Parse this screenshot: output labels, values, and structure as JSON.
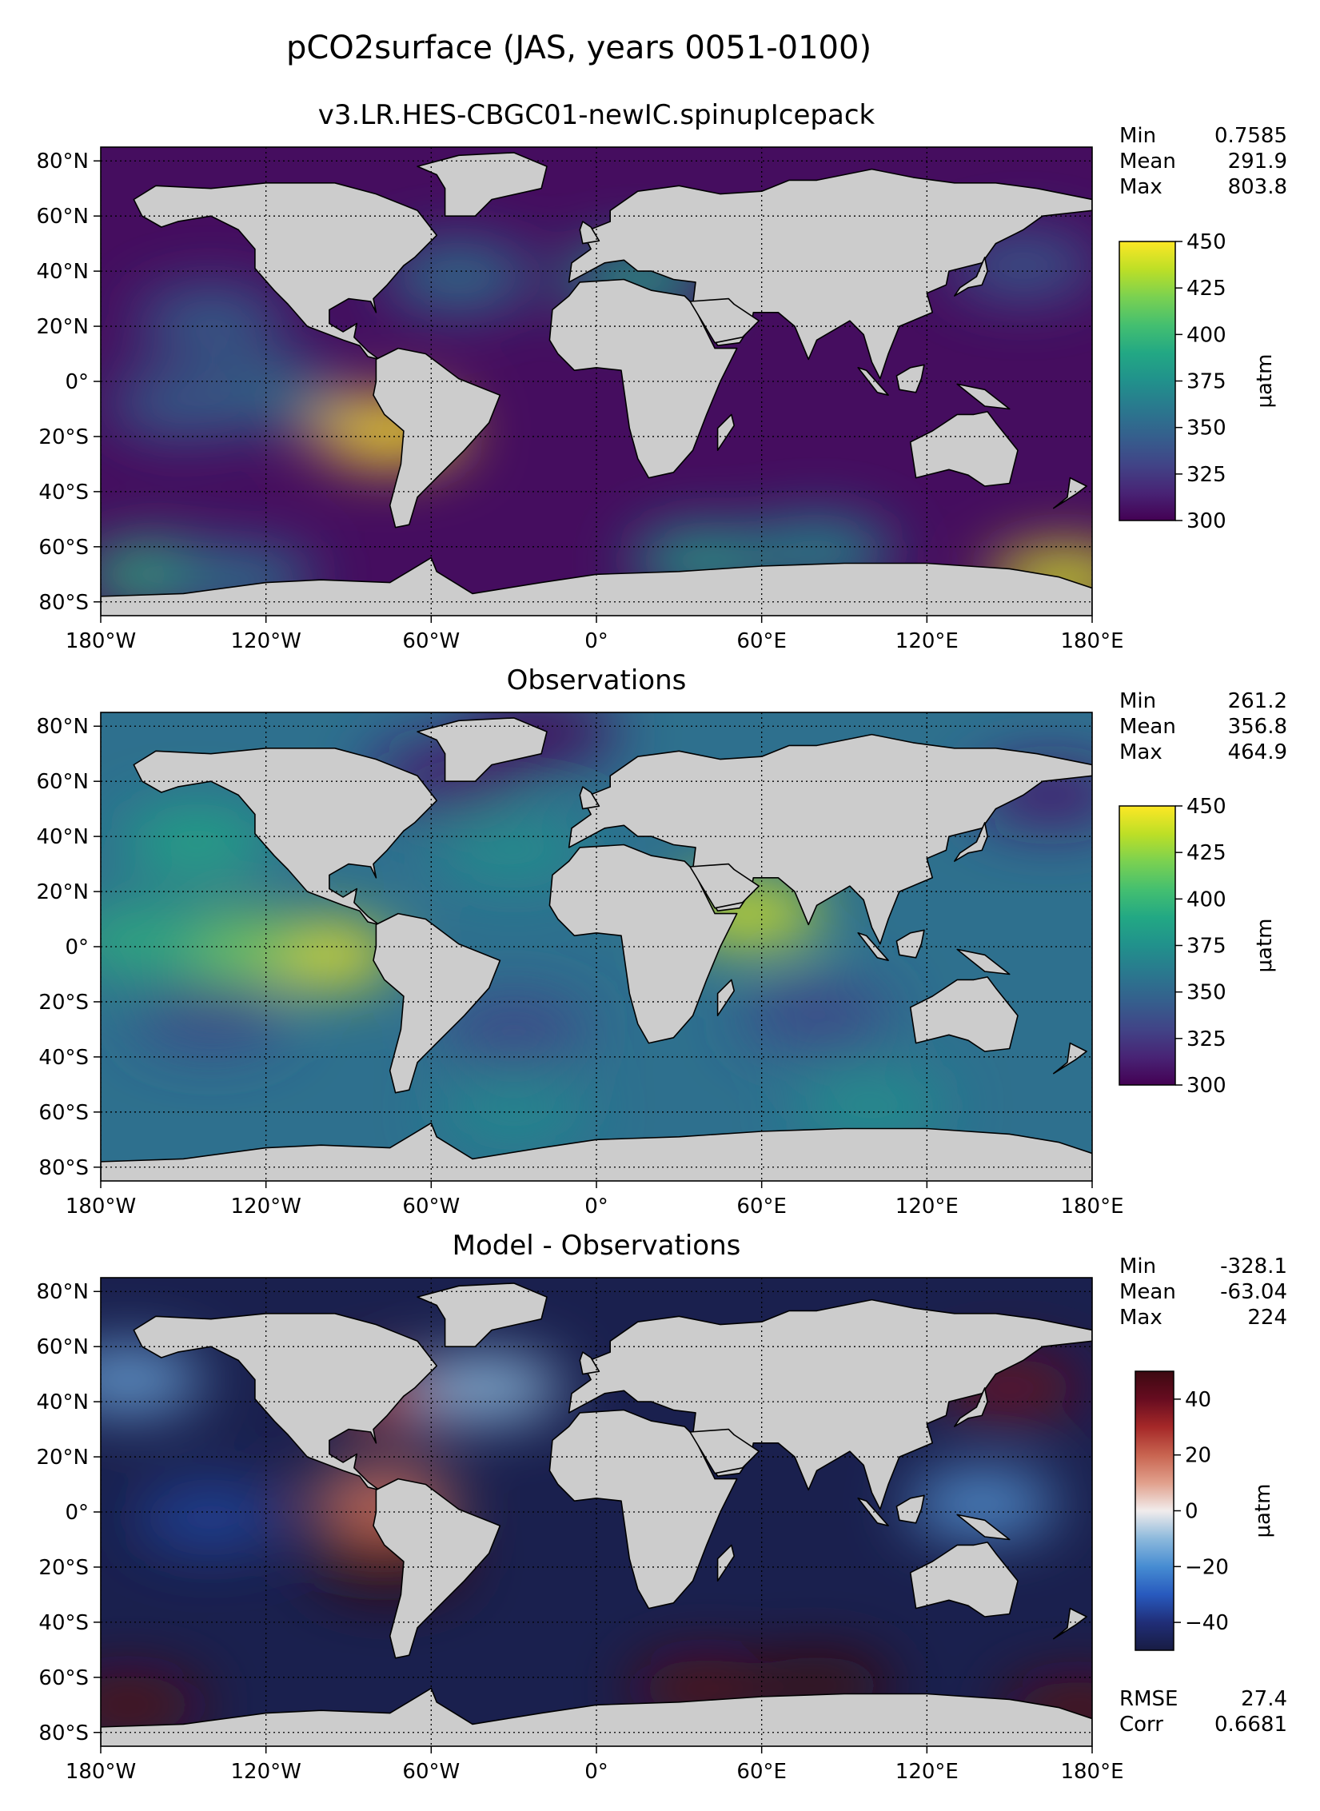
{
  "title": "pCO2surface (JAS, years 0051-0100)",
  "lon_ticks": [
    "180°W",
    "120°W",
    "60°W",
    "0°",
    "60°E",
    "120°E",
    "180°E"
  ],
  "lat_ticks": [
    "80°N",
    "60°N",
    "40°N",
    "20°N",
    "0°",
    "20°S",
    "40°S",
    "60°S",
    "80°S"
  ],
  "chart_data": [
    {
      "type": "heatmap",
      "title": "v3.LR.HES-CBGC01-newIC.spinupIcepack",
      "stats": [
        {
          "label": "Min",
          "value": "0.7585"
        },
        {
          "label": "Mean",
          "value": "291.9"
        },
        {
          "label": "Max",
          "value": "803.8"
        }
      ],
      "colorbar": {
        "label": "μatm",
        "colormap": "viridis",
        "min": 300,
        "max": 450,
        "ticks": [
          "300",
          "325",
          "350",
          "375",
          "400",
          "425",
          "450"
        ]
      },
      "xlim": [
        -180,
        180
      ],
      "ylim": [
        -85,
        85
      ],
      "ocean_base": 305,
      "features": [
        {
          "lon": -75,
          "lat": -18,
          "value": 450
        },
        {
          "lon": -120,
          "lat": -5,
          "value": 360
        },
        {
          "lon": -150,
          "lat": -8,
          "value": 350
        },
        {
          "lon": -140,
          "lat": 22,
          "value": 350
        },
        {
          "lon": -50,
          "lat": 38,
          "value": 360
        },
        {
          "lon": 15,
          "lat": 37,
          "value": 385
        },
        {
          "lon": -160,
          "lat": -70,
          "value": 395
        },
        {
          "lon": -130,
          "lat": -72,
          "value": 360
        },
        {
          "lon": 40,
          "lat": -65,
          "value": 385
        },
        {
          "lon": 80,
          "lat": -62,
          "value": 375
        },
        {
          "lon": 170,
          "lat": -72,
          "value": 440
        },
        {
          "lon": 155,
          "lat": 42,
          "value": 345
        }
      ]
    },
    {
      "type": "heatmap",
      "title": "Observations",
      "stats": [
        {
          "label": "Min",
          "value": "261.2"
        },
        {
          "label": "Mean",
          "value": "356.8"
        },
        {
          "label": "Max",
          "value": "464.9"
        }
      ],
      "colorbar": {
        "label": "μatm",
        "colormap": "viridis",
        "min": 300,
        "max": 450,
        "ticks": [
          "300",
          "325",
          "350",
          "375",
          "400",
          "425",
          "450"
        ]
      },
      "xlim": [
        -180,
        180
      ],
      "ylim": [
        -85,
        85
      ],
      "ocean_base": 355,
      "features": [
        {
          "lon": -100,
          "lat": -3,
          "value": 445
        },
        {
          "lon": -135,
          "lat": 0,
          "value": 420
        },
        {
          "lon": -165,
          "lat": 2,
          "value": 395
        },
        {
          "lon": 55,
          "lat": 12,
          "value": 440
        },
        {
          "lon": -145,
          "lat": 38,
          "value": 390
        },
        {
          "lon": -30,
          "lat": 35,
          "value": 375
        },
        {
          "lon": -30,
          "lat": -30,
          "value": 330
        },
        {
          "lon": 80,
          "lat": -25,
          "value": 330
        },
        {
          "lon": -140,
          "lat": -25,
          "value": 330
        },
        {
          "lon": -30,
          "lat": -60,
          "value": 370
        },
        {
          "lon": 100,
          "lat": -58,
          "value": 375
        },
        {
          "lon": -20,
          "lat": 78,
          "value": 300
        },
        {
          "lon": -55,
          "lat": 62,
          "value": 310
        },
        {
          "lon": 165,
          "lat": 55,
          "value": 310
        }
      ]
    },
    {
      "type": "heatmap",
      "title": "Model - Observations",
      "stats": [
        {
          "label": "Min",
          "value": "-328.1"
        },
        {
          "label": "Mean",
          "value": "-63.04"
        },
        {
          "label": "Max",
          "value": "224"
        }
      ],
      "stats2": [
        {
          "label": "RMSE",
          "value": "27.4"
        },
        {
          "label": "Corr",
          "value": "0.6681"
        }
      ],
      "colorbar": {
        "label": "μatm",
        "colormap": "balance",
        "min": -50,
        "max": 50,
        "ticks": [
          "−40",
          "−20",
          "0",
          "20",
          "40"
        ]
      },
      "xlim": [
        -180,
        180
      ],
      "ylim": [
        -85,
        85
      ],
      "ocean_base": -48,
      "features": [
        {
          "lon": -75,
          "lat": -18,
          "value": 50
        },
        {
          "lon": -78,
          "lat": 4,
          "value": 18
        },
        {
          "lon": -170,
          "lat": -70,
          "value": 45
        },
        {
          "lon": 40,
          "lat": -64,
          "value": 45
        },
        {
          "lon": 80,
          "lat": -63,
          "value": 50
        },
        {
          "lon": 175,
          "lat": -72,
          "value": 45
        },
        {
          "lon": 150,
          "lat": 45,
          "value": 40
        },
        {
          "lon": -68,
          "lat": 42,
          "value": 25
        },
        {
          "lon": -40,
          "lat": 45,
          "value": -10
        },
        {
          "lon": 140,
          "lat": 3,
          "value": -18
        },
        {
          "lon": -170,
          "lat": 48,
          "value": -15
        },
        {
          "lon": -140,
          "lat": -2,
          "value": -35
        }
      ]
    }
  ]
}
